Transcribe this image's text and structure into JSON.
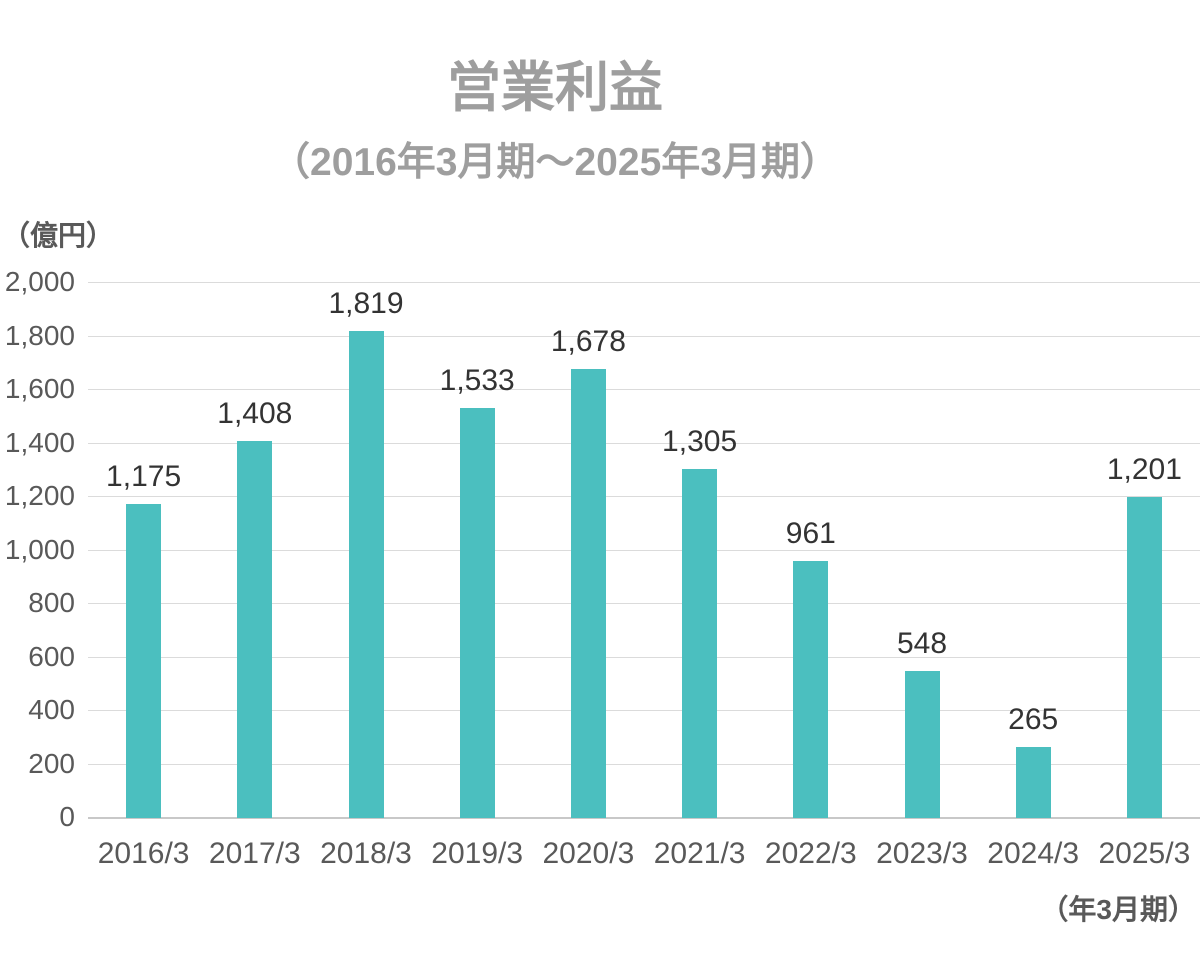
{
  "title": "営業利益",
  "subtitle": "（2016年3月期～2025年3月期）",
  "unit_label": "（億円）",
  "axis_note": "（年3月期）",
  "colors": {
    "bar": "#4BBFBF",
    "title_text": "#9E9E9E",
    "axis_text": "#595959",
    "data_label_text": "#333333",
    "gridline": "#DBDBDB",
    "baseline": "#C8C8C8",
    "background": "#FFFFFF"
  },
  "chart_data": {
    "type": "bar",
    "title": "営業利益",
    "subtitle": "（2016年3月期～2025年3月期）",
    "ylabel": "（億円）",
    "xlabel": "（年3月期）",
    "categories": [
      "2016/3",
      "2017/3",
      "2018/3",
      "2019/3",
      "2020/3",
      "2021/3",
      "2022/3",
      "2023/3",
      "2024/3",
      "2025/3"
    ],
    "values": [
      1175,
      1408,
      1819,
      1533,
      1678,
      1305,
      961,
      548,
      265,
      1201
    ],
    "value_labels": [
      "1,175",
      "1,408",
      "1,819",
      "1,533",
      "1,678",
      "1,305",
      "961",
      "548",
      "265",
      "1,201"
    ],
    "ylim": [
      0,
      2000
    ],
    "y_ticks": [
      0,
      200,
      400,
      600,
      800,
      1000,
      1200,
      1400,
      1600,
      1800,
      2000
    ],
    "y_tick_labels": [
      "0",
      "200",
      "400",
      "600",
      "800",
      "1,000",
      "1,200",
      "1,400",
      "1,600",
      "1,800",
      "2,000"
    ],
    "grid": true,
    "legend": "none",
    "bar_color": "#4BBFBF"
  }
}
